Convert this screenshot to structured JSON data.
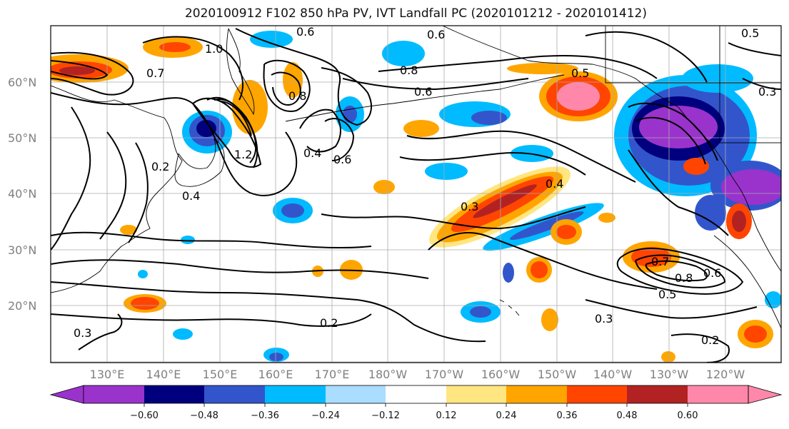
{
  "title": "2020100912 F102 850 hPa PV, IVT Landfall PC (2020101212 - 2020101412)",
  "map": {
    "lat_labels": [
      "60°N",
      "50°N",
      "40°N",
      "30°N",
      "20°N"
    ],
    "lon_labels": [
      "130°E",
      "140°E",
      "150°E",
      "160°E",
      "170°E",
      "180°W",
      "170°W",
      "160°W",
      "150°W",
      "140°W",
      "130°W",
      "120°W"
    ],
    "contour_labels": [
      "0.6",
      "0.6",
      "0.5",
      "1.0",
      "0.7",
      "0.8",
      "0.8",
      "0.6",
      "0.5",
      "0.3",
      "1.2",
      "0.4",
      "0.6",
      "0.4",
      "0.2",
      "0.3",
      "0.4",
      "0.7",
      "0.8",
      "0.6",
      "0.5",
      "0.3",
      "0.2",
      "0.2",
      "0.3"
    ]
  },
  "colorbar": {
    "ticks": [
      "−0.60",
      "−0.48",
      "−0.36",
      "−0.24",
      "−0.12",
      "0.12",
      "0.24",
      "0.36",
      "0.48",
      "0.60"
    ],
    "colors": [
      "#9933cc",
      "#00007f",
      "#3355cc",
      "#00bbff",
      "#aaddff",
      "#ffffff",
      "#ffe680",
      "#ffa500",
      "#ff4500",
      "#b22222",
      "#ff88aa"
    ]
  }
}
